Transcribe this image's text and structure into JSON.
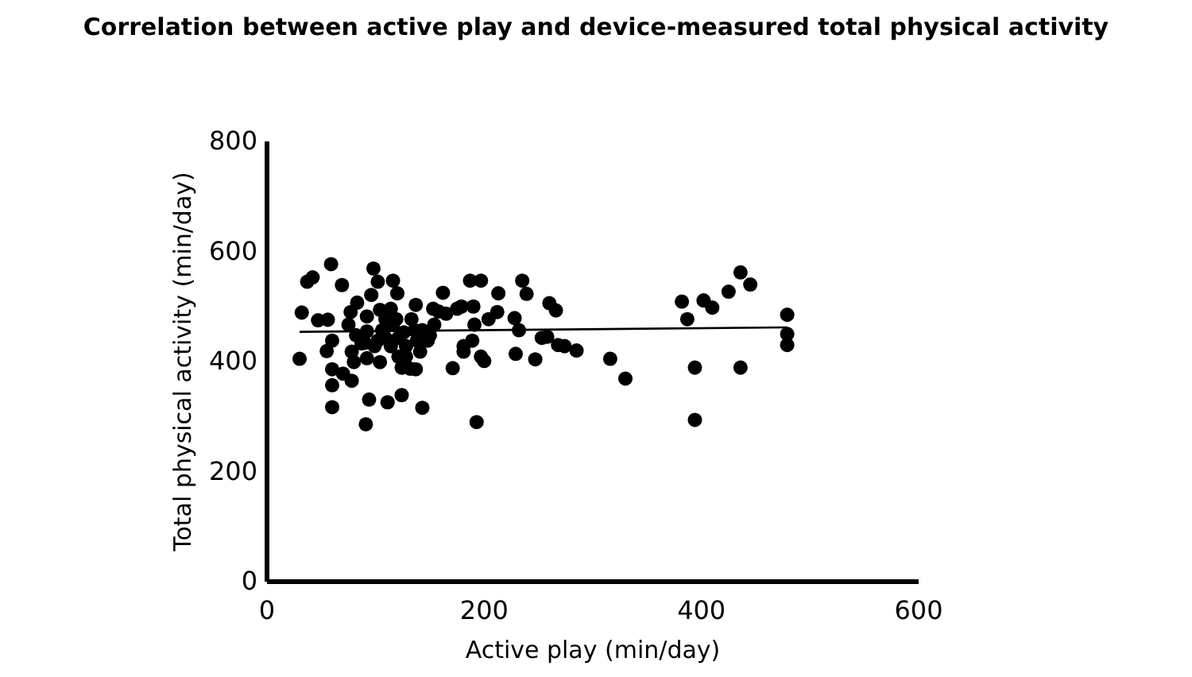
{
  "chart_data": {
    "type": "scatter",
    "title": "Correlation between active play and device-measured total physical activity",
    "xlabel": "Active play (min/day)",
    "ylabel": "Total physical activity (min/day)",
    "xlim": [
      0,
      600
    ],
    "xticks": [
      0,
      200,
      400,
      600
    ],
    "ylim": [
      0,
      800
    ],
    "yticks": [
      0,
      200,
      400,
      600,
      800
    ],
    "grid": false,
    "marker": "circle",
    "series": [
      {
        "color": "#000000",
        "x": [
          30,
          32,
          37,
          42,
          47,
          56,
          59,
          60,
          60,
          60,
          60,
          55,
          69,
          70,
          78,
          77,
          78,
          80,
          83,
          91,
          94,
          92,
          90,
          92,
          96,
          98,
          102,
          104,
          106,
          102,
          111,
          116,
          120,
          119,
          121,
          124,
          121,
          124,
          128,
          132,
          137,
          137,
          141,
          136,
          143,
          150,
          153,
          154,
          158,
          162,
          165,
          171,
          175,
          179,
          181,
          181,
          187,
          190,
          191,
          189,
          193,
          197,
          197,
          200,
          204,
          212,
          213,
          228,
          229,
          232,
          235,
          239,
          247,
          253,
          258,
          260,
          266,
          268,
          274,
          285,
          316,
          330,
          382,
          387,
          394,
          394,
          402,
          410,
          425,
          436,
          445,
          436,
          479,
          479,
          479,
          75,
          82,
          87,
          99,
          109,
          114,
          109,
          116,
          126,
          128,
          133,
          138,
          148,
          104,
          92,
          114,
          143
        ],
        "values": [
          405,
          489,
          545,
          553,
          475,
          476,
          577,
          357,
          317,
          386,
          438,
          419,
          539,
          378,
          365,
          490,
          418,
          399,
          507,
          286,
          331,
          406,
          434,
          455,
          521,
          569,
          545,
          494,
          457,
          438,
          326,
          547,
          524,
          477,
          443,
          339,
          409,
          389,
          409,
          387,
          386,
          503,
          418,
          457,
          316,
          448,
          496,
          467,
          491,
          525,
          487,
          388,
          496,
          500,
          418,
          428,
          547,
          500,
          467,
          438,
          290,
          547,
          409,
          401,
          477,
          490,
          524,
          479,
          414,
          457,
          547,
          523,
          404,
          443,
          445,
          506,
          493,
          430,
          428,
          420,
          405,
          369,
          509,
          477,
          389,
          294,
          511,
          498,
          527,
          562,
          540,
          389,
          485,
          450,
          430,
          467,
          448,
          433,
          428,
          443,
          428,
          477,
          467,
          453,
          428,
          477,
          438,
          438,
          399,
          482,
          496,
          457
        ]
      },
      {
        "type": "line",
        "color": "#000000",
        "marker": "none",
        "x": [
          30,
          479
        ],
        "values": [
          454,
          462
        ]
      }
    ]
  }
}
